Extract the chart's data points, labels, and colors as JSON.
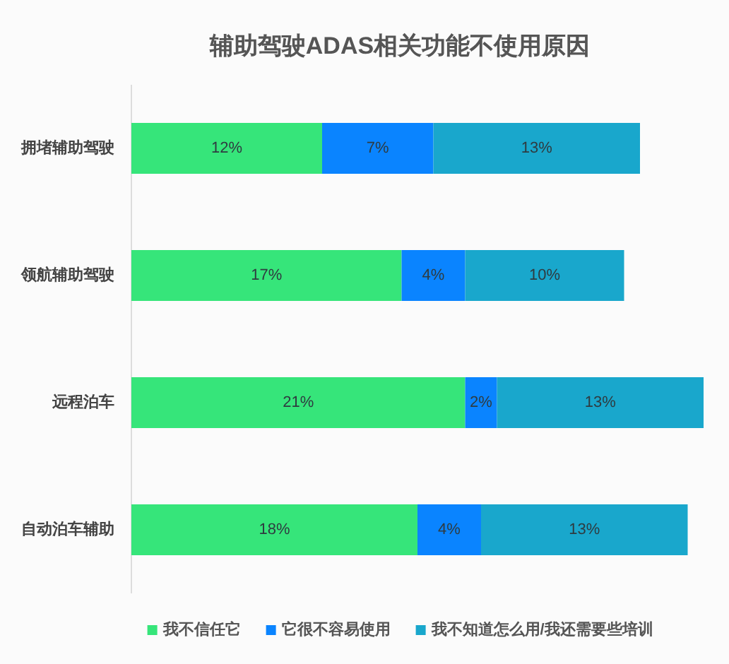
{
  "chart_data": {
    "type": "bar",
    "orientation": "horizontal",
    "stacked": true,
    "title": "辅助驾驶ADAS相关功能不使用原因",
    "categories": [
      "拥堵辅助驾驶",
      "领航辅助驾驶",
      "远程泊车",
      "自动泊车辅助"
    ],
    "series": [
      {
        "name": "我不信任它",
        "color": "#36e57a",
        "values": [
          12,
          17,
          21,
          18
        ],
        "value_labels": [
          "12%",
          "17%",
          "21%",
          "18%"
        ]
      },
      {
        "name": "它很不容易使用",
        "color": "#0a84ff",
        "values": [
          7,
          4,
          2,
          4
        ],
        "value_labels": [
          "7%",
          "4%",
          "2%",
          "4%"
        ]
      },
      {
        "name": "我不知道怎么用/我还需要些培训",
        "color": "#19a7cc",
        "values": [
          13,
          10,
          13,
          13
        ],
        "value_labels": [
          "13%",
          "10%",
          "13%",
          "13%"
        ]
      }
    ],
    "legend": "bottom",
    "tick_labels": "y"
  }
}
